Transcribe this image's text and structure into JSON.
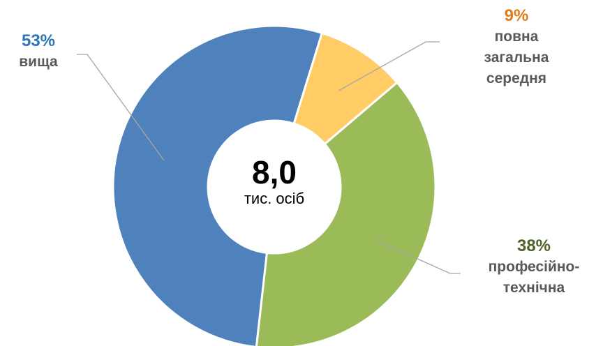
{
  "chart_data": {
    "type": "donut",
    "categories": [
      "повна загальна середня",
      "професійно-технічна",
      "вища"
    ],
    "values": [
      9,
      38,
      53
    ],
    "value_labels": [
      "9%",
      "38%",
      "53%"
    ],
    "colors": [
      "#ffcc66",
      "#9bbb59",
      "#4f81bd"
    ],
    "label_colors": [
      "#e07b1a",
      "#4f6228",
      "#2e75b6"
    ],
    "annotations": [
      "8,0",
      "тис. осіб"
    ]
  }
}
